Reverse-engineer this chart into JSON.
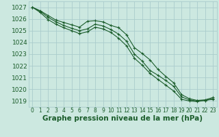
{
  "background_color": "#cce8e0",
  "grid_color": "#aacccc",
  "line_color": "#1a5c2a",
  "xlabel": "Graphe pression niveau de la mer (hPa)",
  "xlabel_fontsize": 7.5,
  "xtick_fontsize": 5.5,
  "ytick_fontsize": 6.5,
  "xlim": [
    -0.5,
    23.5
  ],
  "ylim": [
    1018.5,
    1027.5
  ],
  "yticks": [
    1019,
    1020,
    1021,
    1022,
    1023,
    1024,
    1025,
    1026,
    1027
  ],
  "xticks": [
    0,
    1,
    2,
    3,
    4,
    5,
    6,
    7,
    8,
    9,
    10,
    11,
    12,
    13,
    14,
    15,
    16,
    17,
    18,
    19,
    20,
    21,
    22,
    23
  ],
  "series": [
    [
      1027.0,
      1026.7,
      1026.3,
      1025.9,
      1025.7,
      1025.5,
      1025.3,
      1025.8,
      1025.85,
      1025.75,
      1025.45,
      1025.25,
      1024.65,
      1023.55,
      1023.05,
      1022.5,
      1021.7,
      1021.1,
      1020.55,
      1019.55,
      1019.2,
      1019.05,
      1019.1,
      1019.3
    ],
    [
      1027.0,
      1026.65,
      1026.15,
      1025.75,
      1025.45,
      1025.2,
      1025.0,
      1025.15,
      1025.55,
      1025.4,
      1025.1,
      1024.7,
      1024.1,
      1023.0,
      1022.4,
      1021.6,
      1021.2,
      1020.75,
      1020.25,
      1019.35,
      1019.1,
      1019.0,
      1019.05,
      1019.2
    ],
    [
      1027.0,
      1026.55,
      1025.95,
      1025.55,
      1025.25,
      1025.0,
      1024.75,
      1024.9,
      1025.3,
      1025.15,
      1024.85,
      1024.35,
      1023.7,
      1022.65,
      1022.05,
      1021.35,
      1020.85,
      1020.35,
      1019.85,
      1019.15,
      1019.0,
      1018.95,
      1019.05,
      1019.15
    ]
  ]
}
